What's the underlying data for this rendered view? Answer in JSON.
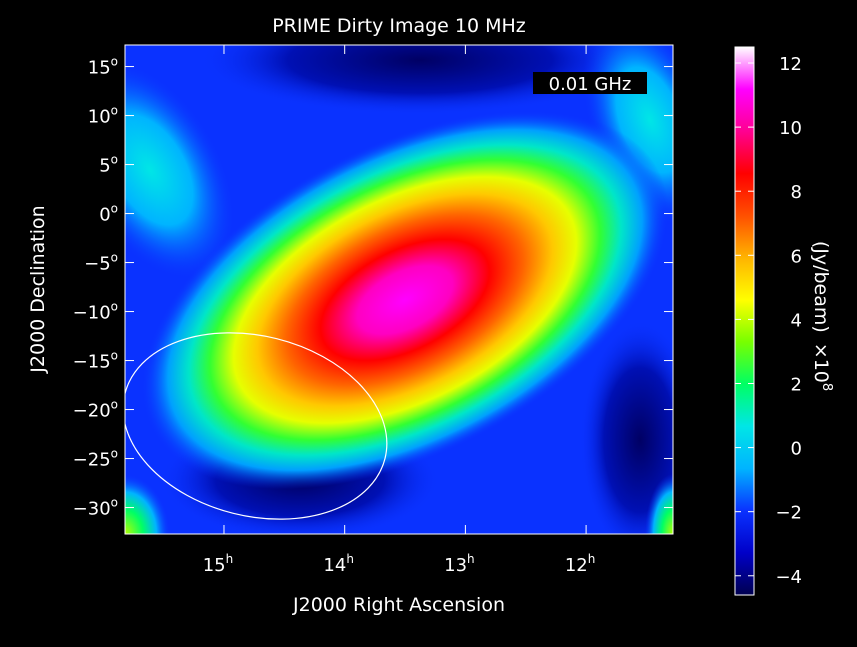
{
  "chart_data": {
    "type": "heatmap",
    "title": "PRIME Dirty Image 10 MHz",
    "xlabel": "J2000 Right Ascension",
    "ylabel": "J2000 Declination",
    "annotation": "0.01 GHz",
    "x_ticks": [
      {
        "value": 15,
        "label": "15",
        "sup": "h"
      },
      {
        "value": 14,
        "label": "14",
        "sup": "h"
      },
      {
        "value": 13,
        "label": "13",
        "sup": "h"
      },
      {
        "value": 12,
        "label": "12",
        "sup": "h"
      }
    ],
    "x_range_hours": [
      15.82,
      11.28
    ],
    "y_ticks": [
      {
        "value": 15,
        "label": "15",
        "sup": "o"
      },
      {
        "value": 10,
        "label": "10",
        "sup": "o"
      },
      {
        "value": 5,
        "label": "5",
        "sup": "o"
      },
      {
        "value": 0,
        "label": "0",
        "sup": "o"
      },
      {
        "value": -5,
        "label": "−5",
        "sup": "o"
      },
      {
        "value": -10,
        "label": "−10",
        "sup": "o"
      },
      {
        "value": -15,
        "label": "−15",
        "sup": "o"
      },
      {
        "value": -20,
        "label": "−20",
        "sup": "o"
      },
      {
        "value": -25,
        "label": "−25",
        "sup": "o"
      },
      {
        "value": -30,
        "label": "−30",
        "sup": "o"
      }
    ],
    "y_range_deg": [
      -32.7,
      17.2
    ],
    "peak": {
      "ra_hours": 13.4,
      "dec_deg": -10,
      "value": 12
    },
    "beam_ellipse": {
      "center_ra_hours": 14.55,
      "center_dec_deg": -21.8,
      "semi_major_deg": 11,
      "semi_minor_deg": 7
    },
    "colorbar": {
      "label": "(Jy/beam)",
      "scale_text": "×10",
      "scale_exp": "8",
      "range": [
        -4.6,
        12.5
      ],
      "ticks": [
        {
          "value": 12,
          "label": "12"
        },
        {
          "value": 10,
          "label": "10"
        },
        {
          "value": 8,
          "label": "8"
        },
        {
          "value": 6,
          "label": "6"
        },
        {
          "value": 4,
          "label": "4"
        },
        {
          "value": 2,
          "label": "2"
        },
        {
          "value": 0,
          "label": "0"
        },
        {
          "value": -2,
          "label": "−2"
        },
        {
          "value": -4,
          "label": "−4"
        }
      ],
      "colors": [
        "#000050",
        "#0000c8",
        "#0a32ff",
        "#00b4ff",
        "#00e6e6",
        "#00ff64",
        "#78ff00",
        "#ffff00",
        "#ffb400",
        "#ff5000",
        "#ff0000",
        "#ff0090",
        "#ff00ff",
        "#ffffff"
      ]
    }
  }
}
